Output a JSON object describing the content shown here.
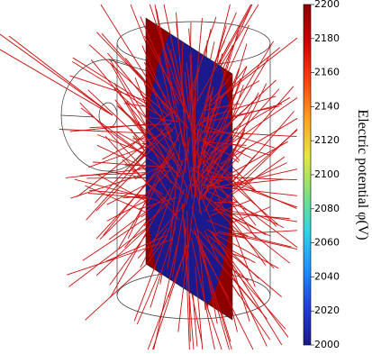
{
  "chart_data": {
    "type": "field-plot",
    "colorbar_label": "Electric potential φ(V)",
    "ylim": [
      2000,
      2200
    ],
    "yticks": [
      2000,
      2020,
      2040,
      2060,
      2080,
      2100,
      2120,
      2140,
      2160,
      2180,
      2200
    ],
    "colormap": [
      "#1a1a8c",
      "#1f3fd9",
      "#1e90ff",
      "#2ed4e6",
      "#7fe07a",
      "#e6e640",
      "#ffa020",
      "#ff4010",
      "#d40000",
      "#8c0000"
    ],
    "line_color": "#cc1111"
  }
}
